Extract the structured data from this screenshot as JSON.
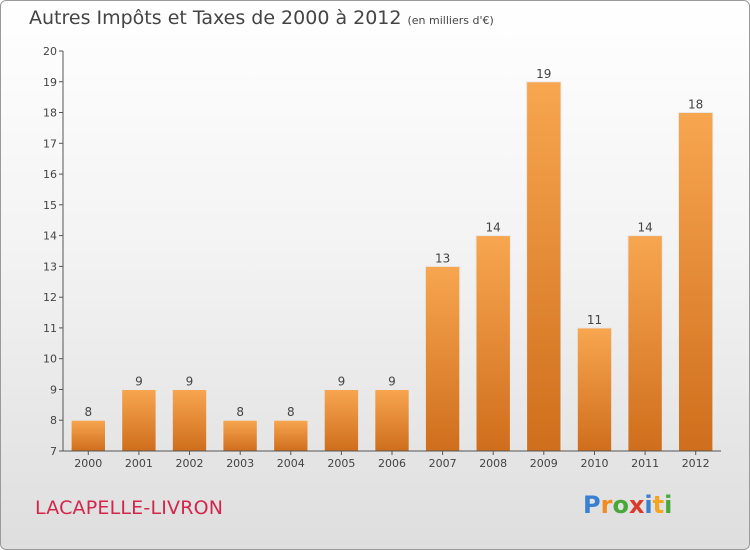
{
  "title": "Autres Impôts et Taxes de 2000 à 2012",
  "title_unit": "(en milliers d'€)",
  "location": "LACAPELLE-LIVRON",
  "logo": {
    "text": "Proxiti",
    "letters": [
      "P",
      "r",
      "o",
      "x",
      "i",
      "t",
      "i"
    ],
    "colors": [
      "#3a7fd0",
      "#f28c1e",
      "#4aa83a",
      "#d93a2b",
      "#3a7fd0",
      "#f2a51e",
      "#4aa83a"
    ]
  },
  "chart_data": {
    "type": "bar",
    "categories": [
      "2000",
      "2001",
      "2002",
      "2003",
      "2004",
      "2005",
      "2006",
      "2007",
      "2008",
      "2009",
      "2010",
      "2011",
      "2012"
    ],
    "values": [
      8,
      9,
      9,
      8,
      8,
      9,
      9,
      13,
      14,
      19,
      11,
      14,
      18
    ],
    "data_labels": [
      "8",
      "9",
      "9",
      "8",
      "8",
      "9",
      "9",
      "13",
      "14",
      "19",
      "11",
      "14",
      "18"
    ],
    "y_ticks": [
      "7",
      "8",
      "9",
      "10",
      "11",
      "12",
      "13",
      "14",
      "15",
      "16",
      "17",
      "18",
      "19",
      "20"
    ],
    "ylim": [
      7,
      20
    ],
    "grid": false,
    "colors": {
      "bar_light": "#f8a650",
      "bar_dark": "#cf6e1c",
      "axis": "#555555",
      "label": "#444444"
    }
  }
}
